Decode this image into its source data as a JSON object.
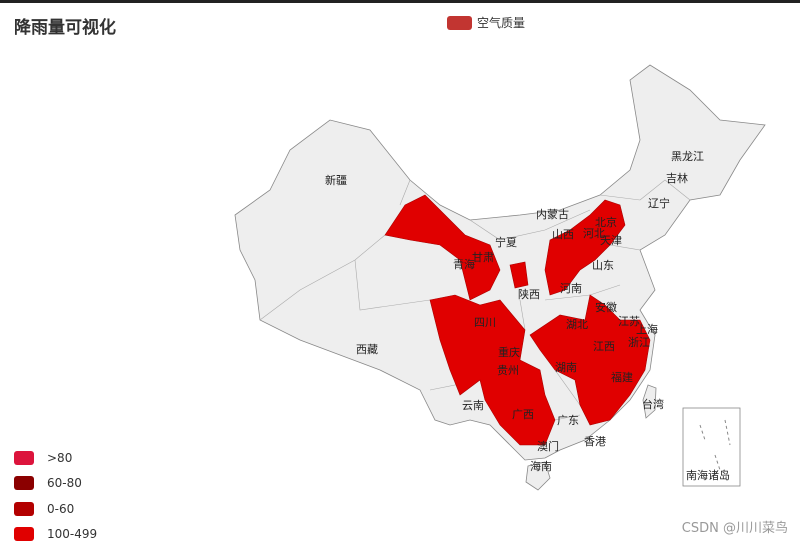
{
  "title": "降雨量可视化",
  "legend": {
    "series_name": "空气质量",
    "color": "#c23531"
  },
  "watermark": "CSDN @川川菜鸟",
  "colors": {
    "highlight": "#e00000",
    "base": "#eeeeee",
    "border": "#888888"
  },
  "visual_map": [
    {
      "label": ">80",
      "color": "#dc143c"
    },
    {
      "label": "60-80",
      "color": "#8b0000"
    },
    {
      "label": "0-60",
      "color": "#b30000"
    },
    {
      "label": "100-499",
      "color": "#e00000"
    }
  ],
  "chart_data": {
    "type": "map",
    "map": "china",
    "highlighted_regions": [
      "甘肃",
      "山西",
      "河北",
      "北京",
      "天津",
      "四川",
      "重庆",
      "贵州",
      "广西",
      "湖北",
      "安徽",
      "江苏",
      "上海",
      "浙江",
      "江西",
      "福建"
    ],
    "region_labels": [
      "新疆",
      "西藏",
      "青海",
      "甘肃",
      "宁夏",
      "内蒙古",
      "黑龙江",
      "吉林",
      "辽宁",
      "北京",
      "天津",
      "河北",
      "山西",
      "山东",
      "河南",
      "陕西",
      "四川",
      "重庆",
      "湖北",
      "安徽",
      "江苏",
      "上海",
      "浙江",
      "江西",
      "湖南",
      "贵州",
      "云南",
      "广西",
      "广东",
      "福建",
      "台湾",
      "澳门",
      "香港",
      "海南",
      "南海诸岛"
    ]
  }
}
